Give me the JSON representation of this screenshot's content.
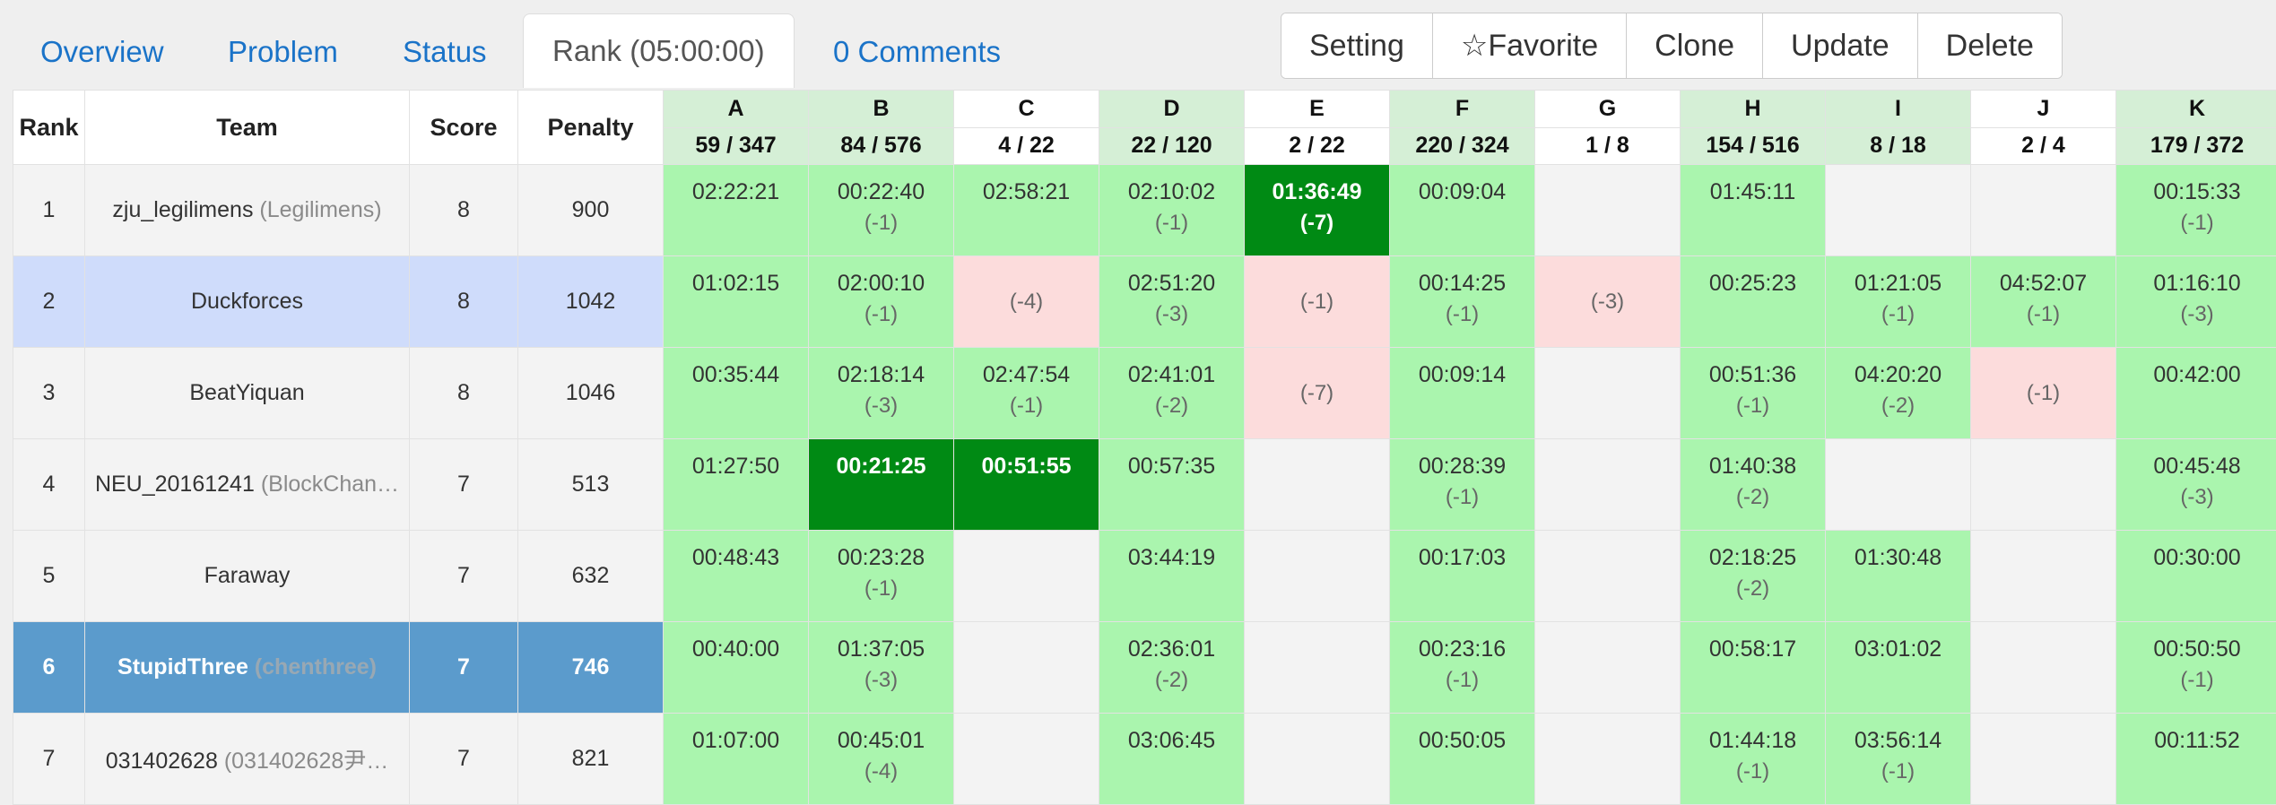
{
  "tabs": [
    {
      "label": "Overview"
    },
    {
      "label": "Problem"
    },
    {
      "label": "Status"
    },
    {
      "label": "Rank (05:00:00)"
    },
    {
      "label": "0 Comments"
    }
  ],
  "buttons": [
    "Setting",
    "☆Favorite",
    "Clone",
    "Update",
    "Delete"
  ],
  "headers": {
    "rank": "Rank",
    "team": "Team",
    "score": "Score",
    "penalty": "Penalty"
  },
  "problems": [
    {
      "id": "A",
      "stat": "59 / 347",
      "solved": true
    },
    {
      "id": "B",
      "stat": "84 / 576",
      "solved": true
    },
    {
      "id": "C",
      "stat": "4 / 22",
      "solved": false
    },
    {
      "id": "D",
      "stat": "22 / 120",
      "solved": true
    },
    {
      "id": "E",
      "stat": "2 / 22",
      "solved": false
    },
    {
      "id": "F",
      "stat": "220 / 324",
      "solved": true
    },
    {
      "id": "G",
      "stat": "1 / 8",
      "solved": false
    },
    {
      "id": "H",
      "stat": "154 / 516",
      "solved": true
    },
    {
      "id": "I",
      "stat": "8 / 18",
      "solved": true
    },
    {
      "id": "J",
      "stat": "2 / 4",
      "solved": false
    },
    {
      "id": "K",
      "stat": "179 / 372",
      "solved": true
    }
  ],
  "rows": [
    {
      "rank": "1",
      "team": "zju_legilimens",
      "sub": "(Legilimens)",
      "score": "8",
      "penalty": "900",
      "hl": "",
      "cells": [
        {
          "s": "ac",
          "t": "02:22:21",
          "a": ""
        },
        {
          "s": "ac",
          "t": "00:22:40",
          "a": "(-1)"
        },
        {
          "s": "ac",
          "t": "02:58:21",
          "a": ""
        },
        {
          "s": "ac",
          "t": "02:10:02",
          "a": "(-1)"
        },
        {
          "s": "fb",
          "t": "01:36:49",
          "a": "(-7)"
        },
        {
          "s": "ac",
          "t": "00:09:04",
          "a": ""
        },
        {
          "s": "",
          "t": "",
          "a": ""
        },
        {
          "s": "ac",
          "t": "01:45:11",
          "a": ""
        },
        {
          "s": "",
          "t": "",
          "a": ""
        },
        {
          "s": "",
          "t": "",
          "a": ""
        },
        {
          "s": "ac",
          "t": "00:15:33",
          "a": "(-1)"
        }
      ]
    },
    {
      "rank": "2",
      "team": "Duckforces",
      "sub": "",
      "score": "8",
      "penalty": "1042",
      "hl": "hl1",
      "cells": [
        {
          "s": "ac",
          "t": "01:02:15",
          "a": ""
        },
        {
          "s": "ac",
          "t": "02:00:10",
          "a": "(-1)"
        },
        {
          "s": "wa",
          "t": "",
          "a": "(-4)"
        },
        {
          "s": "ac",
          "t": "02:51:20",
          "a": "(-3)"
        },
        {
          "s": "wa",
          "t": "",
          "a": "(-1)"
        },
        {
          "s": "ac",
          "t": "00:14:25",
          "a": "(-1)"
        },
        {
          "s": "wa",
          "t": "",
          "a": "(-3)"
        },
        {
          "s": "ac",
          "t": "00:25:23",
          "a": ""
        },
        {
          "s": "ac",
          "t": "01:21:05",
          "a": "(-1)"
        },
        {
          "s": "ac",
          "t": "04:52:07",
          "a": "(-1)"
        },
        {
          "s": "ac",
          "t": "01:16:10",
          "a": "(-3)"
        }
      ]
    },
    {
      "rank": "3",
      "team": "BeatYiquan",
      "sub": "",
      "score": "8",
      "penalty": "1046",
      "hl": "",
      "cells": [
        {
          "s": "ac",
          "t": "00:35:44",
          "a": ""
        },
        {
          "s": "ac",
          "t": "02:18:14",
          "a": "(-3)"
        },
        {
          "s": "ac",
          "t": "02:47:54",
          "a": "(-1)"
        },
        {
          "s": "ac",
          "t": "02:41:01",
          "a": "(-2)"
        },
        {
          "s": "wa",
          "t": "",
          "a": "(-7)"
        },
        {
          "s": "ac",
          "t": "00:09:14",
          "a": ""
        },
        {
          "s": "",
          "t": "",
          "a": ""
        },
        {
          "s": "ac",
          "t": "00:51:36",
          "a": "(-1)"
        },
        {
          "s": "ac",
          "t": "04:20:20",
          "a": "(-2)"
        },
        {
          "s": "wa",
          "t": "",
          "a": "(-1)"
        },
        {
          "s": "ac",
          "t": "00:42:00",
          "a": ""
        }
      ]
    },
    {
      "rank": "4",
      "team": "NEU_20161241",
      "sub": "(BlockChan…",
      "score": "7",
      "penalty": "513",
      "hl": "",
      "cells": [
        {
          "s": "ac",
          "t": "01:27:50",
          "a": ""
        },
        {
          "s": "fb",
          "t": "00:21:25",
          "a": ""
        },
        {
          "s": "fb",
          "t": "00:51:55",
          "a": ""
        },
        {
          "s": "ac",
          "t": "00:57:35",
          "a": ""
        },
        {
          "s": "",
          "t": "",
          "a": ""
        },
        {
          "s": "ac",
          "t": "00:28:39",
          "a": "(-1)"
        },
        {
          "s": "",
          "t": "",
          "a": ""
        },
        {
          "s": "ac",
          "t": "01:40:38",
          "a": "(-2)"
        },
        {
          "s": "",
          "t": "",
          "a": ""
        },
        {
          "s": "",
          "t": "",
          "a": ""
        },
        {
          "s": "ac",
          "t": "00:45:48",
          "a": "(-3)"
        }
      ]
    },
    {
      "rank": "5",
      "team": "Faraway",
      "sub": "",
      "score": "7",
      "penalty": "632",
      "hl": "",
      "cells": [
        {
          "s": "ac",
          "t": "00:48:43",
          "a": ""
        },
        {
          "s": "ac",
          "t": "00:23:28",
          "a": "(-1)"
        },
        {
          "s": "",
          "t": "",
          "a": ""
        },
        {
          "s": "ac",
          "t": "03:44:19",
          "a": ""
        },
        {
          "s": "",
          "t": "",
          "a": ""
        },
        {
          "s": "ac",
          "t": "00:17:03",
          "a": ""
        },
        {
          "s": "",
          "t": "",
          "a": ""
        },
        {
          "s": "ac",
          "t": "02:18:25",
          "a": "(-2)"
        },
        {
          "s": "ac",
          "t": "01:30:48",
          "a": ""
        },
        {
          "s": "",
          "t": "",
          "a": ""
        },
        {
          "s": "ac",
          "t": "00:30:00",
          "a": ""
        }
      ]
    },
    {
      "rank": "6",
      "team": "StupidThree",
      "sub": "(chenthree)",
      "score": "7",
      "penalty": "746",
      "hl": "hl2",
      "cells": [
        {
          "s": "ac",
          "t": "00:40:00",
          "a": ""
        },
        {
          "s": "ac",
          "t": "01:37:05",
          "a": "(-3)"
        },
        {
          "s": "",
          "t": "",
          "a": ""
        },
        {
          "s": "ac",
          "t": "02:36:01",
          "a": "(-2)"
        },
        {
          "s": "",
          "t": "",
          "a": ""
        },
        {
          "s": "ac",
          "t": "00:23:16",
          "a": "(-1)"
        },
        {
          "s": "",
          "t": "",
          "a": ""
        },
        {
          "s": "ac",
          "t": "00:58:17",
          "a": ""
        },
        {
          "s": "ac",
          "t": "03:01:02",
          "a": ""
        },
        {
          "s": "",
          "t": "",
          "a": ""
        },
        {
          "s": "ac",
          "t": "00:50:50",
          "a": "(-1)"
        }
      ]
    },
    {
      "rank": "7",
      "team": "031402628",
      "sub": "(031402628尹…",
      "score": "7",
      "penalty": "821",
      "hl": "",
      "cells": [
        {
          "s": "ac",
          "t": "01:07:00",
          "a": ""
        },
        {
          "s": "ac",
          "t": "00:45:01",
          "a": "(-4)"
        },
        {
          "s": "",
          "t": "",
          "a": ""
        },
        {
          "s": "ac",
          "t": "03:06:45",
          "a": ""
        },
        {
          "s": "",
          "t": "",
          "a": ""
        },
        {
          "s": "ac",
          "t": "00:50:05",
          "a": ""
        },
        {
          "s": "",
          "t": "",
          "a": ""
        },
        {
          "s": "ac",
          "t": "01:44:18",
          "a": "(-1)"
        },
        {
          "s": "ac",
          "t": "03:56:14",
          "a": "(-1)"
        },
        {
          "s": "",
          "t": "",
          "a": ""
        },
        {
          "s": "ac",
          "t": "00:11:52",
          "a": ""
        }
      ]
    }
  ]
}
